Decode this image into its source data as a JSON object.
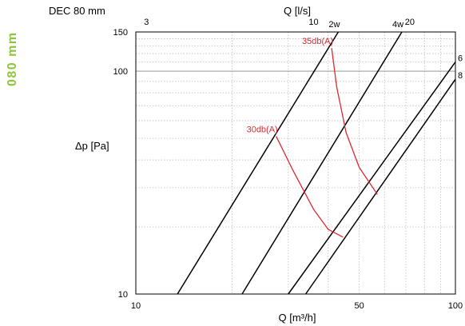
{
  "side_label": {
    "text": "080 mm",
    "color": "#8cc63f"
  },
  "chart_data": {
    "type": "line",
    "title": "DEC 80 mm",
    "scale": "log-log",
    "grid": true,
    "xlabel_bottom": "Q [m³/h]",
    "xlabel_top": "Q [l/s]",
    "ylabel": "Δp [Pa]",
    "xlim": [
      10,
      100
    ],
    "ylim": [
      10,
      150
    ],
    "x_ticks_bottom": [
      {
        "value": 10,
        "label": "10"
      },
      {
        "value": 50,
        "label": "50"
      },
      {
        "value": 100,
        "label": "100"
      }
    ],
    "x_ticks_top": [
      {
        "value_m3h": 10.8,
        "label": "3"
      },
      {
        "value_m3h": 36,
        "label": "10"
      },
      {
        "value_m3h": 72,
        "label": "20"
      }
    ],
    "y_ticks": [
      {
        "value": 10,
        "label": "10"
      },
      {
        "value": 100,
        "label": "100"
      },
      {
        "value": 150,
        "label": "150"
      }
    ],
    "series": [
      {
        "name": "2w",
        "color": "#000000",
        "points": [
          [
            13.5,
            10
          ],
          [
            43,
            150
          ]
        ]
      },
      {
        "name": "4w",
        "color": "#000000",
        "points": [
          [
            21.5,
            10
          ],
          [
            68,
            150
          ]
        ]
      },
      {
        "name": "6",
        "color": "#000000",
        "points": [
          [
            30,
            10
          ],
          [
            100,
            110
          ]
        ]
      },
      {
        "name": "8",
        "color": "#000000",
        "points": [
          [
            34,
            10
          ],
          [
            100,
            92
          ]
        ]
      },
      {
        "name": "30db(A)",
        "color": "#e0272f",
        "points": [
          [
            27.5,
            51
          ],
          [
            31,
            36
          ],
          [
            36,
            24
          ],
          [
            40,
            19.5
          ],
          [
            44.5,
            18
          ]
        ]
      },
      {
        "name": "35db(A)",
        "color": "#e0272f",
        "points": [
          [
            41,
            127
          ],
          [
            42.5,
            85
          ],
          [
            45.5,
            53
          ],
          [
            50,
            37
          ],
          [
            57,
            28
          ]
        ]
      }
    ],
    "curve_labels": [
      {
        "text": "30db(A)",
        "x": 27.5,
        "y": 51
      },
      {
        "text": "35db(A)",
        "x": 41,
        "y": 127
      }
    ]
  }
}
